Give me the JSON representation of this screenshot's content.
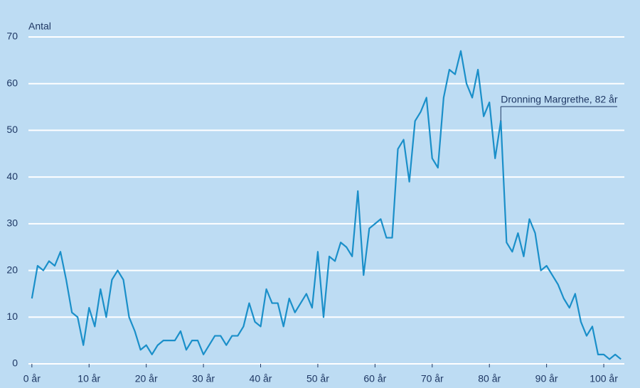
{
  "chart_data": {
    "type": "line",
    "y_label": "Antal",
    "x": [
      0,
      1,
      2,
      3,
      4,
      5,
      6,
      7,
      8,
      9,
      10,
      11,
      12,
      13,
      14,
      15,
      16,
      17,
      18,
      19,
      20,
      21,
      22,
      23,
      24,
      25,
      26,
      27,
      28,
      29,
      30,
      31,
      32,
      33,
      34,
      35,
      36,
      37,
      38,
      39,
      40,
      41,
      42,
      43,
      44,
      45,
      46,
      47,
      48,
      49,
      50,
      51,
      52,
      53,
      54,
      55,
      56,
      57,
      58,
      59,
      60,
      61,
      62,
      63,
      64,
      65,
      66,
      67,
      68,
      69,
      70,
      71,
      72,
      73,
      74,
      75,
      76,
      77,
      78,
      79,
      80,
      81,
      82,
      83,
      84,
      85,
      86,
      87,
      88,
      89,
      90,
      91,
      92,
      93,
      94,
      95,
      96,
      97,
      98,
      99,
      100,
      101,
      102,
      103
    ],
    "series": [
      {
        "color": "#1a8fc9",
        "values": [
          14,
          21,
          20,
          22,
          21,
          24,
          18,
          11,
          10,
          4,
          12,
          8,
          16,
          10,
          18,
          20,
          18,
          10,
          7,
          3,
          4,
          2,
          4,
          5,
          5,
          5,
          7,
          3,
          5,
          5,
          2,
          4,
          6,
          6,
          4,
          6,
          6,
          8,
          13,
          9,
          8,
          16,
          13,
          13,
          8,
          14,
          11,
          13,
          15,
          12,
          24,
          10,
          23,
          22,
          26,
          25,
          23,
          37,
          19,
          29,
          30,
          31,
          27,
          27,
          46,
          48,
          39,
          52,
          54,
          57,
          44,
          42,
          57,
          63,
          62,
          67,
          60,
          57,
          63,
          53,
          56,
          44,
          52,
          26,
          24,
          28,
          23,
          31,
          28,
          20,
          21,
          19,
          17,
          14,
          12,
          15,
          9,
          6,
          8,
          2,
          2,
          1,
          2,
          1
        ]
      }
    ],
    "annotation": {
      "text": "Dronning Margrethe, 82 år",
      "x": 82
    },
    "xlim": [
      -0.6,
      103.6
    ],
    "ylim": [
      0,
      70
    ],
    "xticks": [
      {
        "value": 0,
        "label": "0 år"
      },
      {
        "value": 10,
        "label": "10 år"
      },
      {
        "value": 20,
        "label": "20 år"
      },
      {
        "value": 30,
        "label": "30 år"
      },
      {
        "value": 40,
        "label": "40 år"
      },
      {
        "value": 50,
        "label": "50 år"
      },
      {
        "value": 60,
        "label": "60 år"
      },
      {
        "value": 70,
        "label": "70 år"
      },
      {
        "value": 80,
        "label": "80 år"
      },
      {
        "value": 90,
        "label": "90 år"
      },
      {
        "value": 100,
        "label": "100 år"
      }
    ],
    "yticks": [
      0,
      10,
      20,
      30,
      40,
      50,
      60,
      70
    ],
    "grid": true
  }
}
